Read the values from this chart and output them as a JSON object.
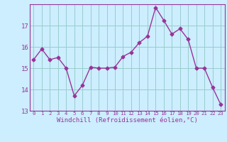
{
  "x": [
    0,
    1,
    2,
    3,
    4,
    5,
    6,
    7,
    8,
    9,
    10,
    11,
    12,
    13,
    14,
    15,
    16,
    17,
    18,
    19,
    20,
    21,
    22,
    23
  ],
  "y": [
    15.4,
    15.9,
    15.4,
    15.5,
    15.0,
    13.7,
    14.2,
    15.05,
    15.0,
    15.0,
    15.05,
    15.55,
    15.75,
    16.2,
    16.5,
    17.85,
    17.25,
    16.6,
    16.85,
    16.35,
    15.0,
    15.0,
    14.1,
    13.3
  ],
  "line_color": "#993399",
  "marker": "D",
  "markersize": 2.5,
  "linewidth": 1.0,
  "xlabel": "Windchill (Refroidissement éolien,°C)",
  "xlabel_color": "#993399",
  "bg_color": "#cceeff",
  "grid_color": "#99cccc",
  "tick_color": "#993399",
  "ylim": [
    13,
    18
  ],
  "yticks": [
    13,
    14,
    15,
    16,
    17
  ],
  "xticks": [
    0,
    1,
    2,
    3,
    4,
    5,
    6,
    7,
    8,
    9,
    10,
    11,
    12,
    13,
    14,
    15,
    16,
    17,
    18,
    19,
    20,
    21,
    22,
    23
  ],
  "xtick_labels": [
    "0",
    "1",
    "2",
    "3",
    "4",
    "5",
    "6",
    "7",
    "8",
    "9",
    "10",
    "11",
    "12",
    "13",
    "14",
    "15",
    "16",
    "17",
    "18",
    "19",
    "20",
    "21",
    "22",
    "23"
  ],
  "spine_color": "#993399",
  "xlabel_fontsize": 6.5,
  "ytick_fontsize": 6.5,
  "xtick_fontsize": 5.2
}
